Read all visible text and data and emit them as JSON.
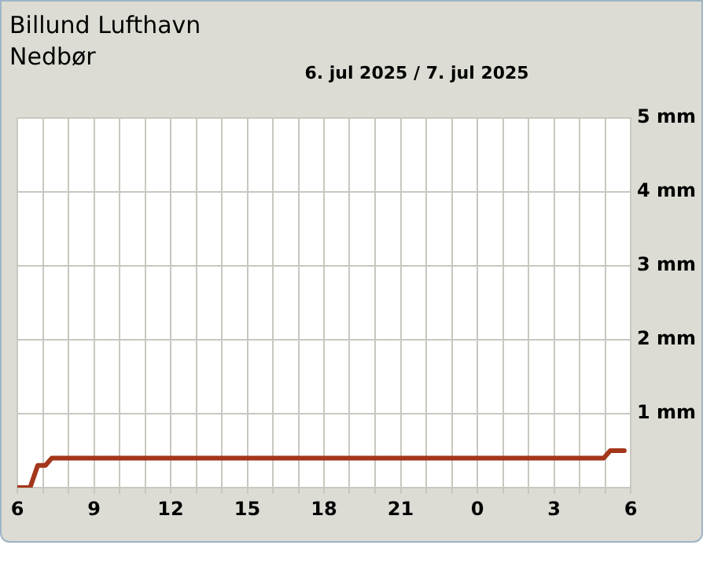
{
  "chart_data": {
    "type": "line",
    "title": "Billund Lufthavn",
    "subtitle": "Nedbør",
    "annotations": [
      "6. jul 2025 / 7. jul 2025"
    ],
    "x": [
      "2025-07-06T06:00",
      "2025-07-06T06:30",
      "2025-07-06T06:48",
      "2025-07-06T07:06",
      "2025-07-06T07:21",
      "2025-07-07T04:57",
      "2025-07-07T05:12",
      "2025-07-07T05:45"
    ],
    "series": [
      {
        "color": "#a3361b",
        "values": [
          0,
          0,
          0.3,
          0.3,
          0.4,
          0.4,
          0.5,
          0.5
        ]
      }
    ],
    "xlim": [
      "2025-07-06T06:00",
      "2025-07-07T06:00"
    ],
    "xticks": [
      {
        "value": "2025-07-06T06:00",
        "label": "6"
      },
      {
        "value": "2025-07-06T07:00",
        "label": null
      },
      {
        "value": "2025-07-06T08:00",
        "label": null
      },
      {
        "value": "2025-07-06T09:00",
        "label": "9"
      },
      {
        "value": "2025-07-06T10:00",
        "label": null
      },
      {
        "value": "2025-07-06T11:00",
        "label": null
      },
      {
        "value": "2025-07-06T12:00",
        "label": "12"
      },
      {
        "value": "2025-07-06T13:00",
        "label": null
      },
      {
        "value": "2025-07-06T14:00",
        "label": null
      },
      {
        "value": "2025-07-06T15:00",
        "label": "15"
      },
      {
        "value": "2025-07-06T16:00",
        "label": null
      },
      {
        "value": "2025-07-06T17:00",
        "label": null
      },
      {
        "value": "2025-07-06T18:00",
        "label": "18"
      },
      {
        "value": "2025-07-06T19:00",
        "label": null
      },
      {
        "value": "2025-07-06T20:00",
        "label": null
      },
      {
        "value": "2025-07-06T21:00",
        "label": "21"
      },
      {
        "value": "2025-07-06T22:00",
        "label": null
      },
      {
        "value": "2025-07-06T23:00",
        "label": null
      },
      {
        "value": "2025-07-07T00:00",
        "label": "0"
      },
      {
        "value": "2025-07-07T01:00",
        "label": null
      },
      {
        "value": "2025-07-07T02:00",
        "label": null
      },
      {
        "value": "2025-07-07T03:00",
        "label": "3"
      },
      {
        "value": "2025-07-07T04:00",
        "label": null
      },
      {
        "value": "2025-07-07T05:00",
        "label": null
      },
      {
        "value": "2025-07-07T06:00",
        "label": "6"
      }
    ],
    "ylim": [
      0,
      5
    ],
    "yticks": [
      {
        "value": 0,
        "label": null
      },
      {
        "value": 1,
        "label": "1 mm"
      },
      {
        "value": 2,
        "label": "2 mm"
      },
      {
        "value": 3,
        "label": "3 mm"
      },
      {
        "value": 4,
        "label": "4 mm"
      },
      {
        "value": 5,
        "label": "5 mm"
      }
    ],
    "grid": true,
    "legend": false,
    "marker": "none",
    "line_style": "solid"
  }
}
